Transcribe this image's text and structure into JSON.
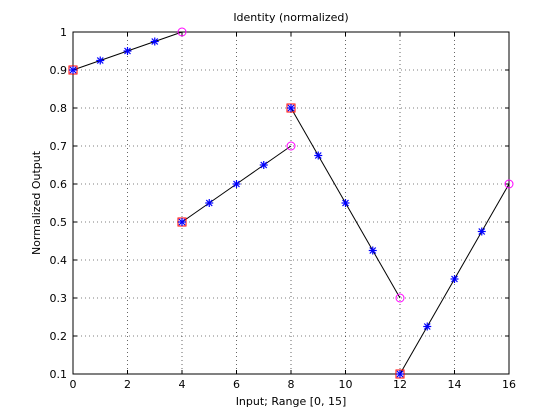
{
  "chart_data": {
    "type": "line",
    "title": "Identity (normalized)",
    "xlabel": "Input; Range [0, 15]",
    "ylabel": "Normalized Output",
    "xlim": [
      0,
      16
    ],
    "ylim": [
      0.1,
      1.0
    ],
    "xticks": [
      0,
      2,
      4,
      6,
      8,
      10,
      12,
      14,
      16
    ],
    "yticks": [
      0.1,
      0.2,
      0.3,
      0.4,
      0.5,
      0.6,
      0.7,
      0.8,
      0.9,
      1.0
    ],
    "xtick_labels": [
      "0",
      "2",
      "4",
      "6",
      "8",
      "10",
      "12",
      "14",
      "16"
    ],
    "ytick_labels": [
      "0.1",
      "0.2",
      "0.3",
      "0.4",
      "0.5",
      "0.6",
      "0.7",
      "0.8",
      "0.9",
      "1"
    ],
    "grid": true,
    "colors": {
      "line": "#000000",
      "star": "#0000ff",
      "square": "#ff0000",
      "circle": "#ff00ff"
    },
    "segments": [
      {
        "x": [
          0,
          1,
          2,
          3,
          4
        ],
        "y": [
          0.9,
          0.925,
          0.95,
          0.975,
          1.0
        ]
      },
      {
        "x": [
          4,
          5,
          6,
          7,
          8
        ],
        "y": [
          0.5,
          0.55,
          0.6,
          0.65,
          0.7
        ]
      },
      {
        "x": [
          8,
          9,
          10,
          11,
          12
        ],
        "y": [
          0.8,
          0.675,
          0.55,
          0.425,
          0.3
        ]
      },
      {
        "x": [
          12,
          13,
          14,
          15,
          16
        ],
        "y": [
          0.1,
          0.225,
          0.35,
          0.475,
          0.6
        ]
      }
    ]
  }
}
